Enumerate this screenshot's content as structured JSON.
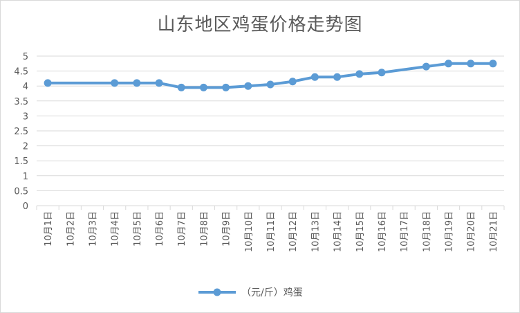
{
  "chart_data": {
    "type": "line",
    "title": "山东地区鸡蛋价格走势图",
    "categories": [
      "10月1日",
      "10月2日",
      "10月3日",
      "10月4日",
      "10月5日",
      "10月6日",
      "10月7日",
      "10月8日",
      "10月9日",
      "10月10日",
      "10月11日",
      "10月12日",
      "10月13日",
      "10月14日",
      "10月15日",
      "10月16日",
      "10月17日",
      "10月18日",
      "10月19日",
      "10月20日",
      "10月21日"
    ],
    "series": [
      {
        "name": "（元/斤）鸡蛋",
        "color": "#5b9bd5",
        "values": [
          4.1,
          null,
          null,
          4.1,
          4.1,
          4.1,
          3.95,
          3.95,
          3.95,
          4.0,
          4.05,
          4.15,
          4.3,
          4.3,
          4.4,
          4.45,
          null,
          4.65,
          4.75,
          4.75,
          4.75
        ]
      }
    ],
    "yticks": [
      "0",
      "0.5",
      "1",
      "1.5",
      "2",
      "2.5",
      "3",
      "3.5",
      "4",
      "4.5",
      "5"
    ],
    "ylim": [
      0,
      5
    ],
    "grid": true,
    "legend": "bottom"
  }
}
